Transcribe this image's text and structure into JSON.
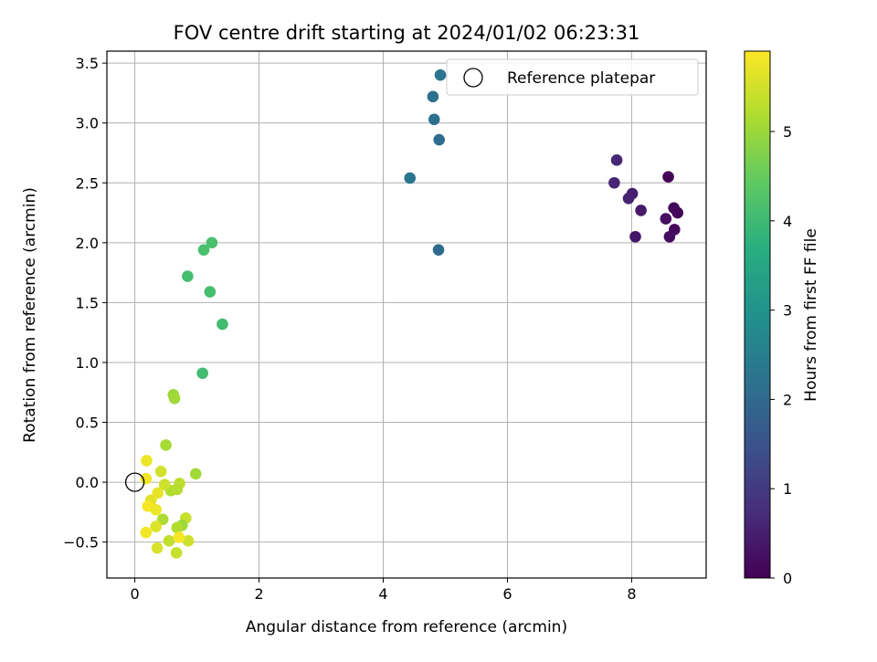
{
  "chart_data": {
    "type": "scatter",
    "title": "FOV centre drift starting at 2024/01/02 06:23:31",
    "xlabel": "Angular distance from reference (arcmin)",
    "ylabel": "Rotation from reference (arcmin)",
    "xlim": [
      -0.45,
      9.2
    ],
    "ylim": [
      -0.8,
      3.6
    ],
    "x_ticks": [
      0,
      2,
      4,
      6,
      8
    ],
    "y_ticks": [
      -0.5,
      0.0,
      0.5,
      1.0,
      1.5,
      2.0,
      2.5,
      3.0,
      3.5
    ],
    "x_tick_labels": [
      "0",
      "2",
      "4",
      "6",
      "8"
    ],
    "y_tick_labels": [
      "−0.5",
      "0.0",
      "0.5",
      "1.0",
      "1.5",
      "2.0",
      "2.5",
      "3.0",
      "3.5"
    ],
    "grid": true,
    "legend": {
      "position": "upper-right",
      "entries": [
        "Reference platepar"
      ]
    },
    "colorbar": {
      "label": "Hours from first FF file",
      "colormap": "viridis",
      "range": [
        0,
        5.9
      ],
      "ticks": [
        0,
        1,
        2,
        3,
        4,
        5
      ],
      "tick_labels": [
        "0",
        "1",
        "2",
        "3",
        "4",
        "5"
      ]
    },
    "reference_point": {
      "x": 0.0,
      "y": 0.0
    },
    "points": [
      {
        "x": 8.59,
        "y": 2.55,
        "hours": 0.05
      },
      {
        "x": 8.74,
        "y": 2.25,
        "hours": 0.05
      },
      {
        "x": 8.68,
        "y": 2.29,
        "hours": 0.1
      },
      {
        "x": 8.69,
        "y": 2.11,
        "hours": 0.15
      },
      {
        "x": 8.61,
        "y": 2.05,
        "hours": 0.2
      },
      {
        "x": 8.55,
        "y": 2.2,
        "hours": 0.25
      },
      {
        "x": 8.06,
        "y": 2.05,
        "hours": 0.35
      },
      {
        "x": 8.15,
        "y": 2.27,
        "hours": 0.4
      },
      {
        "x": 8.01,
        "y": 2.41,
        "hours": 0.45
      },
      {
        "x": 7.95,
        "y": 2.37,
        "hours": 0.55
      },
      {
        "x": 7.72,
        "y": 2.5,
        "hours": 0.6
      },
      {
        "x": 7.76,
        "y": 2.69,
        "hours": 0.65
      },
      {
        "x": 4.89,
        "y": 1.94,
        "hours": 2.05
      },
      {
        "x": 4.9,
        "y": 2.86,
        "hours": 2.1
      },
      {
        "x": 4.82,
        "y": 3.03,
        "hours": 2.15
      },
      {
        "x": 4.8,
        "y": 3.22,
        "hours": 2.2
      },
      {
        "x": 4.92,
        "y": 3.4,
        "hours": 2.25
      },
      {
        "x": 4.43,
        "y": 2.54,
        "hours": 2.3
      },
      {
        "x": 1.09,
        "y": 0.91,
        "hours": 4.05
      },
      {
        "x": 1.41,
        "y": 1.32,
        "hours": 4.05
      },
      {
        "x": 1.21,
        "y": 1.59,
        "hours": 4.1
      },
      {
        "x": 0.85,
        "y": 1.72,
        "hours": 4.1
      },
      {
        "x": 1.11,
        "y": 1.94,
        "hours": 4.15
      },
      {
        "x": 1.24,
        "y": 2.0,
        "hours": 4.15
      },
      {
        "x": 0.62,
        "y": 0.73,
        "hours": 5.0
      },
      {
        "x": 0.64,
        "y": 0.7,
        "hours": 5.05
      },
      {
        "x": 0.5,
        "y": 0.31,
        "hours": 5.1
      },
      {
        "x": 0.98,
        "y": 0.07,
        "hours": 5.05
      },
      {
        "x": 0.72,
        "y": -0.01,
        "hours": 5.3
      },
      {
        "x": 0.58,
        "y": -0.07,
        "hours": 5.2
      },
      {
        "x": 0.68,
        "y": -0.06,
        "hours": 5.25
      },
      {
        "x": 0.48,
        "y": -0.02,
        "hours": 5.45
      },
      {
        "x": 0.42,
        "y": 0.09,
        "hours": 5.5
      },
      {
        "x": 0.19,
        "y": 0.18,
        "hours": 5.75
      },
      {
        "x": 0.18,
        "y": 0.03,
        "hours": 5.8
      },
      {
        "x": 0.37,
        "y": -0.09,
        "hours": 5.7
      },
      {
        "x": 0.26,
        "y": -0.15,
        "hours": 5.65
      },
      {
        "x": 0.21,
        "y": -0.2,
        "hours": 5.85
      },
      {
        "x": 0.34,
        "y": -0.23,
        "hours": 5.75
      },
      {
        "x": 0.45,
        "y": -0.31,
        "hours": 5.15
      },
      {
        "x": 0.82,
        "y": -0.3,
        "hours": 5.4
      },
      {
        "x": 0.76,
        "y": -0.36,
        "hours": 5.0
      },
      {
        "x": 0.68,
        "y": -0.38,
        "hours": 5.2
      },
      {
        "x": 0.34,
        "y": -0.37,
        "hours": 5.6
      },
      {
        "x": 0.18,
        "y": -0.42,
        "hours": 5.8
      },
      {
        "x": 0.55,
        "y": -0.49,
        "hours": 5.35
      },
      {
        "x": 0.86,
        "y": -0.49,
        "hours": 5.45
      },
      {
        "x": 0.71,
        "y": -0.46,
        "hours": 5.85
      },
      {
        "x": 0.36,
        "y": -0.55,
        "hours": 5.55
      },
      {
        "x": 0.67,
        "y": -0.59,
        "hours": 5.4
      }
    ]
  }
}
